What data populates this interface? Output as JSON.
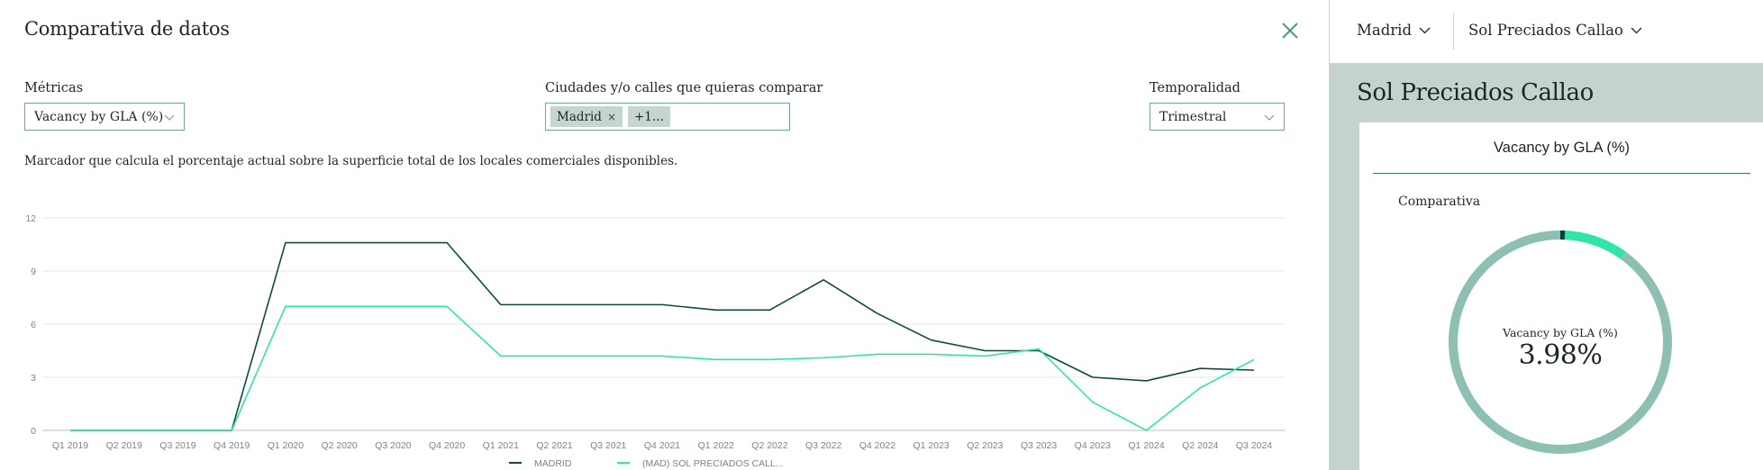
{
  "modal": {
    "title": "Comparativa de datos",
    "metric_label": "Métricas",
    "metric_value": "Vacancy by GLA (%)",
    "compare_label": "Ciudades y/o calles que quieras comparar",
    "compare_tags": [
      {
        "label": "Madrid",
        "remove": "×"
      },
      {
        "label": "+1..."
      }
    ],
    "period_label": "Temporalidad",
    "period_value": "Trimestral",
    "description": "Marcador que calcula el porcentaje actual sobre la superficie total de los locales comerciales disponibles."
  },
  "chart_data": {
    "type": "line",
    "categories": [
      "Q1 2019",
      "Q2 2019",
      "Q3 2019",
      "Q4 2019",
      "Q1 2020",
      "Q2 2020",
      "Q3 2020",
      "Q4 2020",
      "Q1 2021",
      "Q2 2021",
      "Q3 2021",
      "Q4 2021",
      "Q1 2022",
      "Q2 2022",
      "Q3 2022",
      "Q4 2022",
      "Q1 2023",
      "Q2 2023",
      "Q3 2023",
      "Q4 2023",
      "Q1 2024",
      "Q2 2024",
      "Q3 2024"
    ],
    "y_ticks": [
      0,
      3,
      6,
      9,
      12
    ],
    "ylim": [
      0,
      12
    ],
    "grid": true,
    "legend_position": "bottom",
    "series": [
      {
        "name": "MADRID",
        "color": "#0b4b41",
        "values": [
          0,
          0,
          0,
          0,
          10.6,
          10.6,
          10.6,
          10.6,
          7.1,
          7.1,
          7.1,
          7.1,
          6.8,
          6.8,
          8.5,
          6.6,
          5.1,
          4.5,
          4.5,
          3.0,
          2.8,
          3.5,
          3.4
        ]
      },
      {
        "name": "(MAD) SOL PRECIADOS CALL...",
        "color": "#2fe6a6",
        "values": [
          0,
          0,
          0,
          0,
          7.0,
          7.0,
          7.0,
          7.0,
          4.2,
          4.2,
          4.2,
          4.2,
          4.0,
          4.0,
          4.1,
          4.3,
          4.3,
          4.2,
          4.6,
          1.6,
          0.0,
          2.4,
          4.0
        ]
      }
    ]
  },
  "sidebar": {
    "city_dropdown": "Madrid",
    "street_dropdown": "Sol Preciados Callao",
    "place_title": "Sol Preciados Callao",
    "card_title": "Vacancy by GLA (%)",
    "card_subtitle": "Comparativa",
    "donut_label": "Vacancy by GLA (%)",
    "donut_value": "3.98%",
    "donut_fraction": 0.0398,
    "donut_colors": {
      "track": "#8dbfb2",
      "value": "#2fe6a6",
      "marker": "#0b3d36"
    }
  }
}
